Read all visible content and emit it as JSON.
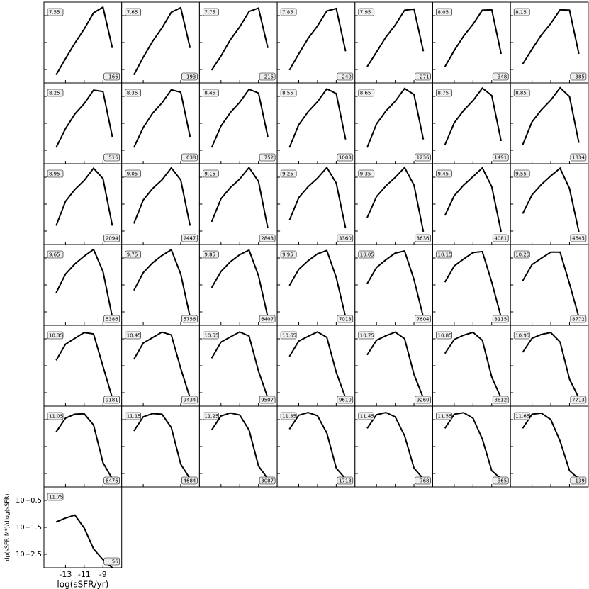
{
  "chart_data": {
    "type": "line",
    "xlabel": "log(sSFR/yr)",
    "ylabel": "dp(sSFR|M*)/dlog(sSFR)",
    "x": [
      -14,
      -13,
      -12,
      -11,
      -10,
      -9,
      -8
    ],
    "xlim": [
      -15.3,
      -7
    ],
    "ylim": [
      0.001,
      1
    ],
    "log_y": true,
    "xticks": [
      -13,
      -11,
      -9
    ],
    "yticks": [
      {
        "value": 0.3162,
        "label": "10−0.5"
      },
      {
        "value": 0.03162,
        "label": "10−1.5"
      },
      {
        "value": 0.003162,
        "label": "10−2.5"
      }
    ],
    "color": "#000000",
    "panels": [
      {
        "title": "7.55",
        "annotation": 166,
        "values": [
          0.002,
          0.008,
          0.03,
          0.1,
          0.4,
          0.65,
          0.02
        ]
      },
      {
        "title": "7.65",
        "annotation": 193,
        "values": [
          0.002,
          0.009,
          0.035,
          0.11,
          0.42,
          0.62,
          0.02
        ]
      },
      {
        "title": "7.75",
        "annotation": 215,
        "values": [
          0.003,
          0.01,
          0.04,
          0.12,
          0.45,
          0.6,
          0.02
        ]
      },
      {
        "title": "7.85",
        "annotation": 240,
        "values": [
          0.003,
          0.012,
          0.045,
          0.13,
          0.47,
          0.58,
          0.015
        ]
      },
      {
        "title": "7.95",
        "annotation": 271,
        "values": [
          0.004,
          0.014,
          0.05,
          0.14,
          0.5,
          0.55,
          0.015
        ]
      },
      {
        "title": "8.05",
        "annotation": 348,
        "values": [
          0.004,
          0.016,
          0.055,
          0.15,
          0.5,
          0.52,
          0.012
        ]
      },
      {
        "title": "8.15",
        "annotation": 385,
        "values": [
          0.005,
          0.018,
          0.06,
          0.16,
          0.52,
          0.5,
          0.012
        ]
      },
      {
        "title": "8.25",
        "annotation": 516,
        "values": [
          0.004,
          0.02,
          0.07,
          0.17,
          0.54,
          0.48,
          0.01
        ]
      },
      {
        "title": "8.35",
        "annotation": 638,
        "values": [
          0.004,
          0.022,
          0.075,
          0.18,
          0.56,
          0.45,
          0.01
        ]
      },
      {
        "title": "8.45",
        "annotation": 752,
        "values": [
          0.004,
          0.025,
          0.08,
          0.19,
          0.58,
          0.42,
          0.01
        ]
      },
      {
        "title": "8.55",
        "annotation": 1003,
        "values": [
          0.004,
          0.028,
          0.085,
          0.2,
          0.6,
          0.4,
          0.008
        ]
      },
      {
        "title": "8.65",
        "annotation": 1236,
        "values": [
          0.004,
          0.03,
          0.09,
          0.21,
          0.62,
          0.37,
          0.008
        ]
      },
      {
        "title": "8.75",
        "annotation": 1491,
        "values": [
          0.005,
          0.033,
          0.095,
          0.22,
          0.64,
          0.34,
          0.007
        ]
      },
      {
        "title": "8.85",
        "annotation": 1834,
        "values": [
          0.005,
          0.036,
          0.1,
          0.23,
          0.66,
          0.31,
          0.006
        ]
      },
      {
        "title": "8.95",
        "annotation": 2094,
        "values": [
          0.005,
          0.04,
          0.11,
          0.24,
          0.68,
          0.28,
          0.005
        ]
      },
      {
        "title": "9.05",
        "annotation": 2447,
        "values": [
          0.006,
          0.045,
          0.12,
          0.25,
          0.7,
          0.25,
          0.005
        ]
      },
      {
        "title": "9.15",
        "annotation": 2843,
        "values": [
          0.007,
          0.05,
          0.13,
          0.27,
          0.72,
          0.22,
          0.004
        ]
      },
      {
        "title": "9.25",
        "annotation": 3360,
        "values": [
          0.008,
          0.055,
          0.14,
          0.29,
          0.72,
          0.19,
          0.004
        ]
      },
      {
        "title": "9.35",
        "annotation": 3636,
        "values": [
          0.01,
          0.06,
          0.15,
          0.31,
          0.72,
          0.16,
          0.003
        ]
      },
      {
        "title": "9.45",
        "annotation": 4081,
        "values": [
          0.012,
          0.065,
          0.16,
          0.33,
          0.7,
          0.14,
          0.003
        ]
      },
      {
        "title": "9.55",
        "annotation": 4645,
        "values": [
          0.014,
          0.07,
          0.17,
          0.35,
          0.68,
          0.12,
          0.003
        ]
      },
      {
        "title": "9.65",
        "annotation": 5386,
        "values": [
          0.016,
          0.08,
          0.19,
          0.37,
          0.66,
          0.1,
          0.002
        ]
      },
      {
        "title": "9.75",
        "annotation": 5756,
        "values": [
          0.02,
          0.09,
          0.21,
          0.39,
          0.64,
          0.08,
          0.002
        ]
      },
      {
        "title": "9.85",
        "annotation": 6407,
        "values": [
          0.025,
          0.1,
          0.23,
          0.42,
          0.62,
          0.07,
          0.002
        ]
      },
      {
        "title": "9.95",
        "annotation": 7013,
        "values": [
          0.03,
          0.12,
          0.25,
          0.45,
          0.6,
          0.06,
          0.002
        ]
      },
      {
        "title": "10.05",
        "annotation": 7604,
        "values": [
          0.035,
          0.14,
          0.27,
          0.48,
          0.58,
          0.05,
          0.002
        ]
      },
      {
        "title": "10.15",
        "annotation": 8115,
        "values": [
          0.04,
          0.16,
          0.29,
          0.5,
          0.55,
          0.04,
          0.002
        ]
      },
      {
        "title": "10.25",
        "annotation": 8772,
        "values": [
          0.045,
          0.18,
          0.31,
          0.52,
          0.52,
          0.035,
          0.002
        ]
      },
      {
        "title": "10.35",
        "annotation": 9181,
        "values": [
          0.05,
          0.2,
          0.33,
          0.54,
          0.48,
          0.03,
          0.002
        ]
      },
      {
        "title": "10.45",
        "annotation": 9434,
        "values": [
          0.055,
          0.22,
          0.35,
          0.56,
          0.44,
          0.025,
          0.002
        ]
      },
      {
        "title": "10.55",
        "annotation": 9507,
        "values": [
          0.06,
          0.24,
          0.37,
          0.57,
          0.4,
          0.02,
          0.002
        ]
      },
      {
        "title": "10.65",
        "annotation": 9610,
        "values": [
          0.07,
          0.26,
          0.39,
          0.57,
          0.36,
          0.018,
          0.002
        ]
      },
      {
        "title": "10.75",
        "annotation": 9260,
        "values": [
          0.08,
          0.28,
          0.41,
          0.56,
          0.32,
          0.015,
          0.002
        ]
      },
      {
        "title": "10.85",
        "annotation": 8812,
        "values": [
          0.09,
          0.3,
          0.43,
          0.55,
          0.28,
          0.012,
          0.002
        ]
      },
      {
        "title": "10.95",
        "annotation": 7713,
        "values": [
          0.1,
          0.33,
          0.46,
          0.54,
          0.24,
          0.01,
          0.002
        ]
      },
      {
        "title": "11.05",
        "annotation": 6476,
        "values": [
          0.11,
          0.36,
          0.5,
          0.52,
          0.2,
          0.008,
          0.002
        ]
      },
      {
        "title": "11.15",
        "annotation": 4684,
        "values": [
          0.12,
          0.4,
          0.53,
          0.5,
          0.16,
          0.007,
          0.002
        ]
      },
      {
        "title": "11.25",
        "annotation": 3087,
        "values": [
          0.13,
          0.43,
          0.56,
          0.47,
          0.13,
          0.006,
          0.002
        ]
      },
      {
        "title": "11.35",
        "annotation": 1713,
        "values": [
          0.14,
          0.46,
          0.58,
          0.44,
          0.1,
          0.005,
          0.002
        ]
      },
      {
        "title": "11.45",
        "annotation": 768,
        "values": [
          0.15,
          0.48,
          0.58,
          0.4,
          0.08,
          0.005,
          0.002
        ]
      },
      {
        "title": "11.55",
        "annotation": 365,
        "values": [
          0.15,
          0.5,
          0.57,
          0.36,
          0.06,
          0.004,
          0.002
        ]
      },
      {
        "title": "11.65",
        "annotation": 139,
        "values": [
          0.15,
          0.5,
          0.55,
          0.32,
          0.05,
          0.004,
          0.002
        ]
      },
      {
        "title": "11.75",
        "annotation": 56,
        "values": [
          0.05,
          0.07,
          0.09,
          0.03,
          0.005,
          0.002,
          0.001
        ]
      }
    ]
  }
}
